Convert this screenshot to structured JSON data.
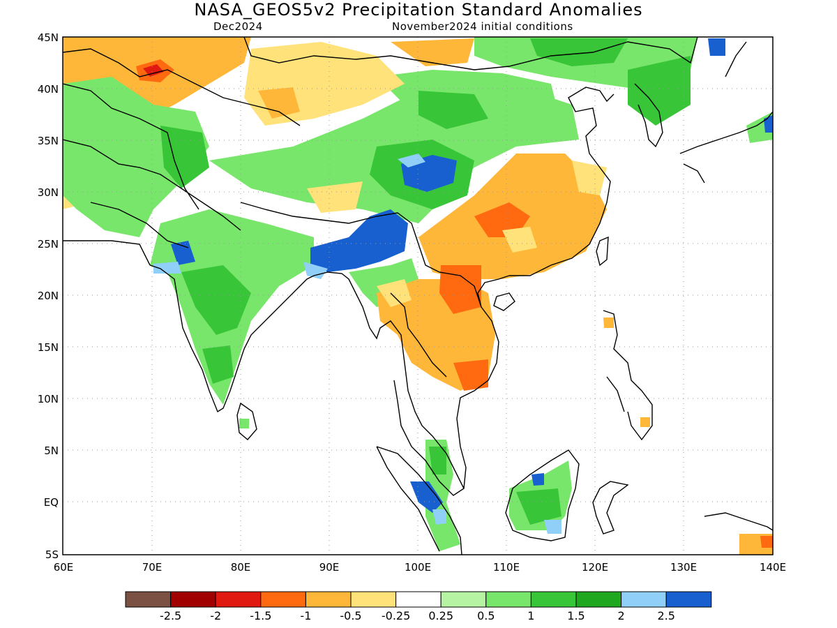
{
  "title": "NASA_GEOS5v2 Precipitation Standard Anomalies",
  "subtitle_left": "Dec2024",
  "subtitle_right": "November2024 initial conditions",
  "lat_labels": [
    "45N",
    "40N",
    "35N",
    "30N",
    "25N",
    "20N",
    "15N",
    "10N",
    "5N",
    "EQ",
    "5S"
  ],
  "lon_labels": [
    "60E",
    "70E",
    "80E",
    "90E",
    "100E",
    "110E",
    "120E",
    "130E",
    "140E"
  ],
  "colorbar": {
    "colors": [
      "#7a5143",
      "#a00000",
      "#e01a10",
      "#ff6a10",
      "#ffb73a",
      "#ffe27a",
      "#ffffff",
      "#b6f4a4",
      "#78e66a",
      "#38c538",
      "#1fa81f",
      "#8fcff8",
      "#1860d0"
    ],
    "labels": [
      "-2.5",
      "-2",
      "-1.5",
      "-1",
      "-0.5",
      "-0.25",
      "0.25",
      "0.5",
      "1",
      "1.5",
      "2",
      "2.5"
    ]
  },
  "colors": {
    "coast": "#000000",
    "grid": "#9a9a9a"
  }
}
